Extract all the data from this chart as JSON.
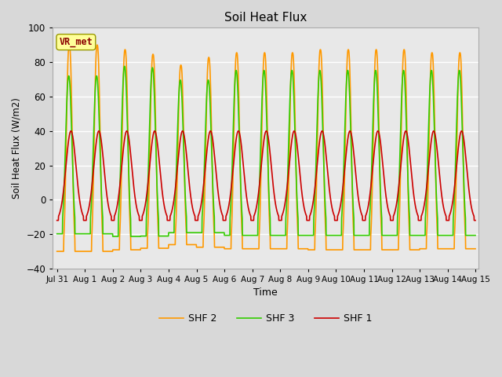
{
  "title": "Soil Heat Flux",
  "xlabel": "Time",
  "ylabel": "Soil Heat Flux (W/m2)",
  "ylim": [
    -40,
    100
  ],
  "yticks": [
    -40,
    -20,
    0,
    20,
    40,
    60,
    80,
    100
  ],
  "xtick_labels": [
    "Jul 31",
    "Aug 1",
    "Aug 2",
    "Aug 3",
    "Aug 4",
    "Aug 5",
    "Aug 6",
    "Aug 7",
    "Aug 8",
    "Aug 9",
    "Aug 10",
    "Aug 11",
    "Aug 12",
    "Aug 13",
    "Aug 14",
    "Aug 15"
  ],
  "colors": {
    "SHF 1": "#cc0000",
    "SHF 2": "#ff9900",
    "SHF 3": "#33cc00"
  },
  "annotation_text": "VR_met",
  "annotation_color": "#8b0000",
  "annotation_bg": "#ffff99",
  "bg_color": "#d8d8d8",
  "plot_bg_color": "#e8e8e8",
  "grid_color": "#ffffff",
  "num_days": 15,
  "steps_per_day": 144,
  "shf1_amp": 40,
  "shf1_min": -12,
  "shf2_amp": 90,
  "shf2_min": -30,
  "shf3_amp": 80,
  "shf3_min": -22,
  "linewidth": 1.2
}
